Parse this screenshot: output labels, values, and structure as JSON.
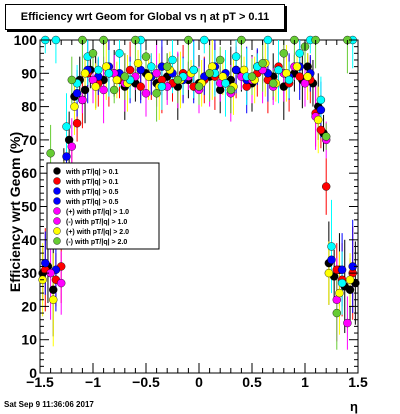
{
  "title": "Efficiency wrt Geom for Global vs   η at pT > 0.11",
  "footer": "Sat Sep  9 11:36:06 2017",
  "chart_data": {
    "type": "scatter",
    "title": "Efficiency wrt Geom for Global vs   η at pT > 0.11",
    "xlabel": "η",
    "ylabel": "Efficiency wrt Geom (%)",
    "xlim": [
      -1.5,
      1.5
    ],
    "ylim": [
      0,
      100
    ],
    "x_ticks": [
      "−1.5",
      "−1",
      "−0.5",
      "0",
      "0.5",
      "1",
      "1.5"
    ],
    "y_ticks": [
      "0",
      "10",
      "20",
      "30",
      "40",
      "50",
      "60",
      "70",
      "80",
      "90",
      "100"
    ],
    "legend_position": "middle-left",
    "series": [
      {
        "name": "with pT/|q| > 0.1",
        "color": "#000000",
        "x": [
          -1.475,
          -1.425,
          -1.375,
          -1.275,
          -1.225,
          -1.175,
          -1.125,
          -1.075,
          -1.025,
          -0.975,
          -0.9,
          -0.8,
          -0.7,
          -0.6,
          -0.5,
          -0.4,
          -0.3,
          -0.2,
          -0.1,
          0.0,
          0.1,
          0.2,
          0.3,
          0.4,
          0.5,
          0.6,
          0.7,
          0.8,
          0.9,
          0.975,
          1.025,
          1.075,
          1.125,
          1.175,
          1.225,
          1.275,
          1.325,
          1.375,
          1.425,
          1.475
        ],
        "y": [
          30,
          32,
          25,
          62,
          70,
          83,
          88,
          85,
          91,
          88,
          88,
          90,
          86,
          87,
          90,
          87,
          89,
          86,
          88,
          87,
          89,
          85,
          88,
          90,
          87,
          91,
          89,
          86,
          90,
          88,
          92,
          87,
          80,
          72,
          33,
          29,
          31,
          26,
          25,
          27
        ]
      },
      {
        "name": "with pT/|q| > 0.1",
        "color": "#ff0000",
        "x": [
          -1.45,
          -1.35,
          -1.3,
          -1.2,
          -1.15,
          -1.1,
          -1.05,
          -0.95,
          -0.85,
          -0.75,
          -0.65,
          -0.55,
          -0.45,
          -0.35,
          -0.25,
          -0.15,
          -0.05,
          0.05,
          0.15,
          0.25,
          0.35,
          0.45,
          0.55,
          0.65,
          0.75,
          0.85,
          0.95,
          1.05,
          1.1,
          1.15,
          1.2,
          1.3,
          1.35,
          1.45
        ],
        "y": [
          31,
          28,
          32,
          60,
          75,
          82,
          90,
          87,
          90,
          88,
          91,
          86,
          89,
          88,
          87,
          90,
          86,
          88,
          89,
          87,
          91,
          86,
          90,
          88,
          92,
          87,
          89,
          88,
          78,
          73,
          56,
          31,
          28,
          30
        ]
      },
      {
        "name": "with pT/|q| > 0.5",
        "color": "#0000ff",
        "x": [
          -1.45,
          -1.35,
          -1.25,
          -1.15,
          -1.05,
          -0.95,
          -0.85,
          -0.75,
          -0.65,
          -0.55,
          -0.45,
          -0.35,
          -0.25,
          -0.15,
          -0.05,
          0.05,
          0.15,
          0.25,
          0.35,
          0.45,
          0.55,
          0.65,
          0.75,
          0.85,
          0.95,
          1.05,
          1.15,
          1.25,
          1.35,
          1.45
        ],
        "y": [
          33,
          31,
          65,
          84,
          91,
          89,
          92,
          90,
          88,
          91,
          89,
          92,
          90,
          88,
          91,
          89,
          92,
          90,
          91,
          88,
          92,
          90,
          91,
          89,
          92,
          90,
          79,
          34,
          31,
          32
        ]
      },
      {
        "name": "with pT/|q| > 1.0",
        "color": "#ff00ff",
        "x": [
          -1.4,
          -1.3,
          -1.2,
          -1.1,
          -1.0,
          -0.9,
          -0.8,
          -0.7,
          -0.6,
          -0.5,
          -0.4,
          -0.3,
          -0.2,
          -0.1,
          0.0,
          0.1,
          0.2,
          0.3,
          0.4,
          0.5,
          0.6,
          0.7,
          0.8,
          0.9,
          1.0,
          1.1,
          1.2,
          1.3,
          1.4
        ],
        "y": [
          30,
          27,
          68,
          82,
          88,
          85,
          90,
          87,
          89,
          84,
          90,
          86,
          88,
          89,
          85,
          90,
          87,
          84,
          89,
          88,
          91,
          86,
          90,
          92,
          87,
          77,
          70,
          22,
          15
        ]
      },
      {
        "name": "with pT/|q| > 2.0",
        "color": "#ffff00",
        "x": [
          -1.475,
          -1.375,
          -1.275,
          -1.175,
          -1.075,
          -0.975,
          -0.875,
          -0.775,
          -0.675,
          -0.575,
          -0.475,
          -0.375,
          -0.275,
          -0.175,
          -0.075,
          0.025,
          0.125,
          0.225,
          0.325,
          0.425,
          0.525,
          0.625,
          0.725,
          0.825,
          0.925,
          1.025,
          1.125,
          1.225,
          1.325,
          1.425
        ],
        "y": [
          28,
          22,
          58,
          80,
          90,
          86,
          92,
          88,
          87,
          93,
          89,
          86,
          91,
          88,
          90,
          87,
          92,
          89,
          86,
          91,
          88,
          93,
          87,
          90,
          92,
          89,
          76,
          30,
          24,
          28
        ]
      },
      {
        "name": "with pT/|q| > 2.0",
        "color": "#00ffff",
        "x": [
          -1.45,
          -1.35,
          -1.25,
          -1.15,
          -1.05,
          -0.95,
          -0.85,
          -0.75,
          -0.65,
          -0.55,
          -0.45,
          -0.35,
          -0.25,
          -0.15,
          -0.05,
          0.05,
          0.15,
          0.25,
          0.35,
          0.45,
          0.55,
          0.65,
          0.75,
          0.85,
          0.95,
          1.05,
          1.15,
          1.25,
          1.35,
          1.45
        ],
        "y": [
          100,
          100,
          74,
          87,
          95,
          91,
          90,
          96,
          88,
          100,
          92,
          86,
          94,
          89,
          91,
          100,
          90,
          87,
          95,
          89,
          92,
          100,
          91,
          88,
          96,
          100,
          82,
          38,
          27,
          100
        ]
      },
      {
        "name": "with pT/|q| > 2.0",
        "color": "#66cc33",
        "x": [
          -1.4,
          -1.3,
          -1.2,
          -1.1,
          -1.0,
          -0.9,
          -0.8,
          -0.7,
          -0.6,
          -0.5,
          -0.4,
          -0.3,
          -0.2,
          -0.1,
          0.0,
          0.1,
          0.2,
          0.3,
          0.4,
          0.5,
          0.6,
          0.7,
          0.8,
          0.9,
          1.0,
          1.1,
          1.2,
          1.3,
          1.4
        ],
        "y": [
          66,
          57,
          88,
          100,
          96,
          100,
          85,
          89,
          100,
          95,
          84,
          92,
          88,
          100,
          86,
          90,
          94,
          85,
          100,
          89,
          93,
          87,
          96,
          100,
          98,
          100,
          71,
          18,
          100
        ]
      }
    ]
  }
}
